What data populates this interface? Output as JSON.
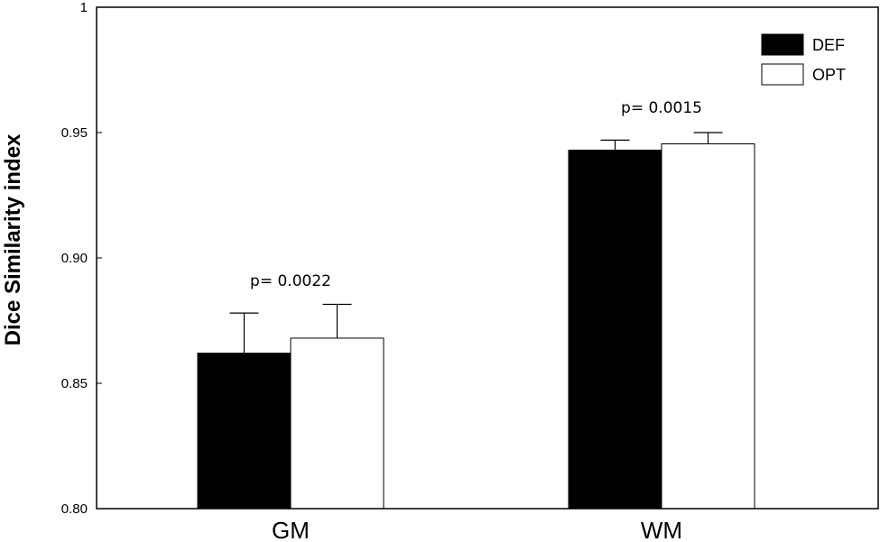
{
  "chart_data": {
    "type": "bar",
    "categories": [
      "GM",
      "WM"
    ],
    "series": [
      {
        "name": "DEF",
        "values": [
          0.862,
          0.943
        ],
        "errors": [
          0.016,
          0.004
        ],
        "color": "#000000"
      },
      {
        "name": "OPT",
        "values": [
          0.868,
          0.9455
        ],
        "errors": [
          0.0135,
          0.0045
        ],
        "color": "#ffffff"
      }
    ],
    "ylabel": "Dice Similarity index",
    "xlabel": "",
    "ylim": [
      0.8,
      1.0
    ],
    "yticks": [
      0.8,
      0.85,
      0.9,
      0.95,
      1.0
    ],
    "ytick_labels": [
      "0.80",
      "0.85",
      "0.90",
      "0.95",
      "1"
    ],
    "annotations": [
      {
        "category": "GM",
        "text": "p= 0.0022",
        "y": 0.891
      },
      {
        "category": "WM",
        "text": "p= 0.0015",
        "y": 0.96
      }
    ],
    "legend_position": "top-right",
    "grid": false
  }
}
